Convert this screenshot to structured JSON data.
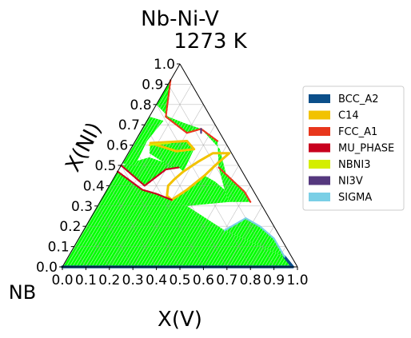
{
  "chart_data": {
    "type": "ternary-phase-diagram",
    "title": "Nb-Ni-V",
    "subtitle": "1273  K",
    "xlabel": "X(V)",
    "ylabel": "X(NI)",
    "origin_label": "NB",
    "components": [
      "NB",
      "V",
      "NI"
    ],
    "x_range": [
      0.0,
      1.0
    ],
    "y_range": [
      0.0,
      1.0
    ],
    "x_ticks": [
      "0.0",
      "0.1",
      "0.2",
      "0.3",
      "0.4",
      "0.5",
      "0.6",
      "0.7",
      "0.8",
      "0.9",
      "1.0"
    ],
    "y_ticks": [
      "0.0",
      "0.1",
      "0.2",
      "0.3",
      "0.4",
      "0.5",
      "0.6",
      "0.7",
      "0.8",
      "0.9",
      "1.0"
    ],
    "grid": true,
    "legend_position": "right",
    "legend": [
      {
        "label": "BCC_A2",
        "color": "#0b4f8a"
      },
      {
        "label": "C14",
        "color": "#f2c200"
      },
      {
        "label": "FCC_A1",
        "color": "#e8361c"
      },
      {
        "label": "MU_PHASE",
        "color": "#c8001e"
      },
      {
        "label": "NBNI3",
        "color": "#d4ee00"
      },
      {
        "label": "NI3V",
        "color": "#55387e"
      },
      {
        "label": "SIGMA",
        "color": "#7acfe6"
      }
    ],
    "tie_line_color": "#00ff00",
    "two_phase_regions": [
      {
        "name": "bcc-mu",
        "poly": [
          [
            0.0,
            0.0
          ],
          [
            0.98,
            0.0
          ],
          [
            0.92,
            0.05
          ],
          [
            0.6,
            0.18
          ],
          [
            0.38,
            0.3
          ],
          [
            0.3,
            0.33
          ],
          [
            0.22,
            0.36
          ],
          [
            0.15,
            0.38
          ],
          [
            0.0,
            0.47
          ]
        ]
      },
      {
        "name": "mu-c14-upper",
        "poly": [
          [
            0.0,
            0.5
          ],
          [
            0.15,
            0.4
          ],
          [
            0.2,
            0.48
          ],
          [
            0.25,
            0.49
          ],
          [
            0.1,
            0.54
          ]
        ]
      },
      {
        "name": "left-upper",
        "poly": [
          [
            0.0,
            0.51
          ],
          [
            0.06,
            0.5
          ],
          [
            0.05,
            0.62
          ],
          [
            0.07,
            0.72
          ],
          [
            0.0,
            0.74
          ]
        ]
      },
      {
        "name": "c14-nbni3",
        "poly": [
          [
            0.07,
            0.61
          ],
          [
            0.22,
            0.62
          ],
          [
            0.27,
            0.58
          ],
          [
            0.28,
            0.47
          ],
          [
            0.25,
            0.49
          ],
          [
            0.2,
            0.5
          ],
          [
            0.09,
            0.56
          ]
        ]
      },
      {
        "name": "ni-rich",
        "poly": [
          [
            0.07,
            0.74
          ],
          [
            0.2,
            0.66
          ],
          [
            0.25,
            0.68
          ],
          [
            0.16,
            0.71
          ],
          [
            0.08,
            0.74
          ],
          [
            0.0,
            0.8
          ],
          [
            0.0,
            0.92
          ]
        ]
      },
      {
        "name": "ni3v-fcc",
        "poly": [
          [
            0.25,
            0.68
          ],
          [
            0.35,
            0.62
          ],
          [
            0.42,
            0.49
          ],
          [
            0.48,
            0.44
          ],
          [
            0.38,
            0.58
          ]
        ]
      },
      {
        "name": "sigma-right",
        "poly": [
          [
            0.42,
            0.49
          ],
          [
            0.59,
            0.37
          ],
          [
            0.64,
            0.32
          ],
          [
            0.55,
            0.32
          ],
          [
            0.5,
            0.38
          ]
        ]
      },
      {
        "name": "c14-sigma",
        "poly": [
          [
            0.3,
            0.33
          ],
          [
            0.38,
            0.3
          ],
          [
            0.55,
            0.32
          ],
          [
            0.5,
            0.38
          ],
          [
            0.44,
            0.42
          ],
          [
            0.38,
            0.45
          ]
        ]
      },
      {
        "name": "bcc-sigma",
        "poly": [
          [
            0.6,
            0.18
          ],
          [
            0.92,
            0.05
          ],
          [
            0.83,
            0.14
          ],
          [
            0.74,
            0.2
          ],
          [
            0.66,
            0.24
          ]
        ]
      }
    ],
    "phase_boundaries": [
      {
        "phase": "C14",
        "points": [
          [
            0.3,
            0.33
          ],
          [
            0.34,
            0.38
          ],
          [
            0.38,
            0.45
          ],
          [
            0.4,
            0.5
          ],
          [
            0.43,
            0.56
          ],
          [
            0.36,
            0.56
          ],
          [
            0.32,
            0.52
          ],
          [
            0.28,
            0.47
          ],
          [
            0.26,
            0.43
          ],
          [
            0.25,
            0.4
          ],
          [
            0.27,
            0.35
          ],
          [
            0.3,
            0.33
          ]
        ]
      },
      {
        "phase": "C14",
        "points": [
          [
            0.07,
            0.61
          ],
          [
            0.22,
            0.62
          ],
          [
            0.27,
            0.58
          ],
          [
            0.2,
            0.57
          ],
          [
            0.07,
            0.61
          ]
        ]
      },
      {
        "phase": "BCC_A2",
        "points": [
          [
            0.0,
            0.0
          ],
          [
            0.98,
            0.0
          ],
          [
            0.92,
            0.05
          ]
        ]
      },
      {
        "phase": "MU_PHASE",
        "points": [
          [
            0.0,
            0.47
          ],
          [
            0.15,
            0.38
          ],
          [
            0.22,
            0.36
          ],
          [
            0.3,
            0.33
          ]
        ]
      },
      {
        "phase": "MU_PHASE",
        "points": [
          [
            0.0,
            0.5
          ],
          [
            0.15,
            0.4
          ],
          [
            0.2,
            0.48
          ],
          [
            0.25,
            0.49
          ]
        ]
      },
      {
        "phase": "FCC_A1",
        "points": [
          [
            0.07,
            0.74
          ],
          [
            0.2,
            0.66
          ],
          [
            0.25,
            0.68
          ],
          [
            0.35,
            0.62
          ]
        ]
      },
      {
        "phase": "FCC_A1",
        "points": [
          [
            0.42,
            0.49
          ],
          [
            0.59,
            0.37
          ],
          [
            0.64,
            0.32
          ]
        ]
      },
      {
        "phase": "FCC_A1",
        "points": [
          [
            0.0,
            0.92
          ],
          [
            0.07,
            0.74
          ]
        ]
      },
      {
        "phase": "SIGMA",
        "points": [
          [
            0.6,
            0.18
          ],
          [
            0.66,
            0.24
          ],
          [
            0.74,
            0.2
          ],
          [
            0.83,
            0.14
          ],
          [
            0.92,
            0.05
          ]
        ]
      },
      {
        "phase": "NBNI3",
        "points": [
          [
            0.07,
            0.6
          ],
          [
            0.1,
            0.605
          ],
          [
            0.15,
            0.61
          ]
        ]
      },
      {
        "phase": "NI3V",
        "points": [
          [
            0.25,
            0.68
          ],
          [
            0.26,
            0.66
          ]
        ]
      }
    ]
  }
}
